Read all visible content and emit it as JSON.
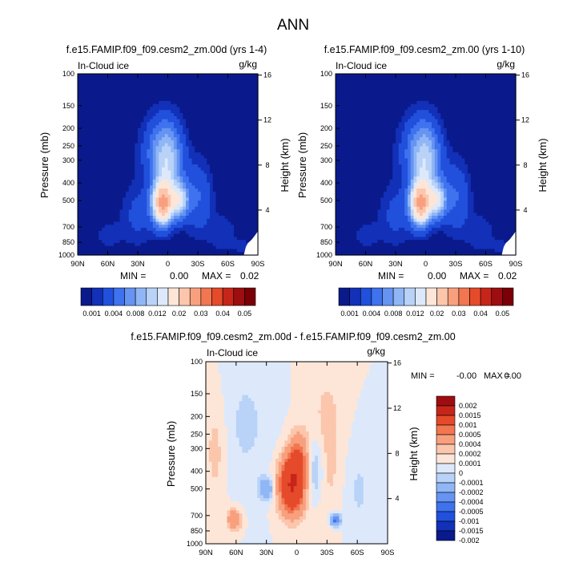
{
  "page_title": "ANN",
  "palettes": {
    "abs": [
      "#0a1a8c",
      "#1230b8",
      "#2050dc",
      "#3e72ee",
      "#6694f2",
      "#90b6f6",
      "#b8d2f8",
      "#dde9fb",
      "#fde6d8",
      "#fbc6ac",
      "#f8a07e",
      "#f2764f",
      "#e54b2a",
      "#c8251a",
      "#9e0e10",
      "#7a0006"
    ],
    "diff": [
      "#0a1a8c",
      "#1230b8",
      "#2050dc",
      "#3e72ee",
      "#6694f2",
      "#90b6f6",
      "#b8d2f8",
      "#dde9fb",
      "#fde6d8",
      "#fbc6ac",
      "#f8a07e",
      "#f2764f",
      "#e54b2a",
      "#c8251a",
      "#9e0e10"
    ]
  },
  "chart_data": [
    {
      "id": "panel_a",
      "type": "heatmap",
      "title": "f.e15.FAMIP.f09_f09.cesm2_zm.00d (yrs 1-4)",
      "left_label": "In-Cloud ice",
      "right_label": "g/kg",
      "ylabel": "Pressure (mb)",
      "y2label": "Height (km)",
      "xticks": [
        "90N",
        "60N",
        "30N",
        "0",
        "30S",
        "60S",
        "90S"
      ],
      "yticks": [
        "100",
        "150",
        "200",
        "250",
        "300",
        "400",
        "500",
        "700",
        "850",
        "1000"
      ],
      "y2ticks": [
        "16",
        "12",
        "8",
        "4"
      ],
      "xlim": [
        90,
        -90
      ],
      "ylim": [
        1000,
        100
      ],
      "stats": {
        "min_label": "MIN =",
        "min": "0.00",
        "max_label": "MAX =",
        "max": "0.02"
      },
      "field": [
        {
          "lat": 5,
          "p": 520,
          "sx": 7,
          "sy": 0.18,
          "amp": 0.024
        },
        {
          "lat": -12,
          "p": 500,
          "sx": 6,
          "sy": 0.15,
          "amp": 0.011
        },
        {
          "lat": 0,
          "p": 320,
          "sx": 10,
          "sy": 0.35,
          "amp": 0.009
        },
        {
          "lat": 8,
          "p": 260,
          "sx": 14,
          "sy": 0.3,
          "amp": 0.004
        },
        {
          "lat": -30,
          "p": 480,
          "sx": 10,
          "sy": 0.32,
          "amp": 0.004
        },
        {
          "lat": 30,
          "p": 600,
          "sx": 12,
          "sy": 0.28,
          "amp": 0.0025
        },
        {
          "lat": 60,
          "p": 780,
          "sx": 10,
          "sy": 0.14,
          "amp": 0.0015
        },
        {
          "lat": -55,
          "p": 760,
          "sx": 10,
          "sy": 0.18,
          "amp": 0.0018
        },
        {
          "lat": -75,
          "p": 900,
          "sx": 6,
          "sy": 0.08,
          "amp": 0.0014
        }
      ],
      "levels": [
        0.001,
        0.002,
        0.004,
        0.006,
        0.008,
        0.01,
        0.012,
        0.015,
        0.02,
        0.025,
        0.03,
        0.035,
        0.04,
        0.045,
        0.05
      ]
    },
    {
      "id": "panel_b",
      "type": "heatmap",
      "title": "f.e15.FAMIP.f09_f09.cesm2_zm.00 (yrs 1-10)",
      "left_label": "In-Cloud ice",
      "right_label": "g/kg",
      "ylabel": "Pressure (mb)",
      "y2label": "Height (km)",
      "xticks": [
        "90N",
        "60N",
        "30N",
        "0",
        "30S",
        "60S",
        "90S"
      ],
      "yticks": [
        "100",
        "150",
        "200",
        "250",
        "300",
        "400",
        "500",
        "700",
        "850",
        "1000"
      ],
      "y2ticks": [
        "16",
        "12",
        "8",
        "4"
      ],
      "xlim": [
        90,
        -90
      ],
      "ylim": [
        1000,
        100
      ],
      "stats": {
        "min_label": "MIN =",
        "min": "0.00",
        "max_label": "MAX =",
        "max": "0.02"
      },
      "field": [
        {
          "lat": 5,
          "p": 520,
          "sx": 7,
          "sy": 0.18,
          "amp": 0.024
        },
        {
          "lat": -12,
          "p": 500,
          "sx": 6,
          "sy": 0.15,
          "amp": 0.011
        },
        {
          "lat": 0,
          "p": 320,
          "sx": 10,
          "sy": 0.35,
          "amp": 0.009
        },
        {
          "lat": 8,
          "p": 260,
          "sx": 14,
          "sy": 0.3,
          "amp": 0.004
        },
        {
          "lat": -30,
          "p": 480,
          "sx": 10,
          "sy": 0.32,
          "amp": 0.004
        },
        {
          "lat": 30,
          "p": 600,
          "sx": 12,
          "sy": 0.28,
          "amp": 0.0025
        },
        {
          "lat": 60,
          "p": 780,
          "sx": 10,
          "sy": 0.14,
          "amp": 0.0015
        },
        {
          "lat": -55,
          "p": 760,
          "sx": 10,
          "sy": 0.18,
          "amp": 0.0018
        },
        {
          "lat": -75,
          "p": 900,
          "sx": 6,
          "sy": 0.08,
          "amp": 0.0014
        }
      ],
      "levels": [
        0.001,
        0.002,
        0.004,
        0.006,
        0.008,
        0.01,
        0.012,
        0.015,
        0.02,
        0.025,
        0.03,
        0.035,
        0.04,
        0.045,
        0.05
      ]
    },
    {
      "id": "panel_c",
      "type": "heatmap",
      "title": "f.e15.FAMIP.f09_f09.cesm2_zm.00d - f.e15.FAMIP.f09_f09.cesm2_zm.00",
      "left_label": "In-Cloud ice",
      "right_label": "g/kg",
      "ylabel": "Pressure (mb)",
      "y2label": "Height (km)",
      "xticks": [
        "90N",
        "60N",
        "30N",
        "0",
        "30S",
        "60S",
        "90S"
      ],
      "yticks": [
        "100",
        "150",
        "200",
        "250",
        "300",
        "400",
        "500",
        "700",
        "850",
        "1000"
      ],
      "y2ticks": [
        "16",
        "12",
        "8",
        "4"
      ],
      "xlim": [
        90,
        -90
      ],
      "ylim": [
        1000,
        100
      ],
      "stats": {
        "min_label": "MIN =",
        "min": "-0.00",
        "max_label": "MAX =",
        "max": "0.00"
      },
      "field": [
        {
          "lat": 5,
          "p": 480,
          "sx": 9,
          "sy": 0.25,
          "amp": 0.001
        },
        {
          "lat": -2,
          "p": 330,
          "sx": 7,
          "sy": 0.22,
          "amp": 0.0004
        },
        {
          "lat": 62,
          "p": 740,
          "sx": 5,
          "sy": 0.1,
          "amp": 0.0004
        },
        {
          "lat": 80,
          "p": 300,
          "sx": 8,
          "sy": 0.5,
          "amp": 0.00015
        },
        {
          "lat": -30,
          "p": 300,
          "sx": 14,
          "sy": 0.8,
          "amp": 0.00015
        },
        {
          "lat": 30,
          "p": 500,
          "sx": 5,
          "sy": 0.1,
          "amp": -0.0004
        },
        {
          "lat": -38,
          "p": 740,
          "sx": 4,
          "sy": 0.06,
          "amp": -0.0006
        },
        {
          "lat": -18,
          "p": 400,
          "sx": 6,
          "sy": 0.3,
          "amp": -0.0003
        },
        {
          "lat": 50,
          "p": 220,
          "sx": 18,
          "sy": 0.6,
          "amp": -0.00012
        },
        {
          "lat": -60,
          "p": 500,
          "sx": 12,
          "sy": 0.5,
          "amp": -0.00012
        }
      ],
      "levels": [
        -0.002,
        -0.0015,
        -0.001,
        -0.0005,
        -0.0004,
        -0.0002,
        -0.0001,
        0,
        0.0001,
        0.0002,
        0.0004,
        0.0005,
        0.001,
        0.0015,
        0.002
      ]
    }
  ],
  "colorbars": {
    "abs_labels": [
      "0.001",
      "0.004",
      "0.008",
      "0.012",
      "0.02",
      "0.03",
      "0.04",
      "0.05"
    ],
    "diff_labels": [
      "0.002",
      "0.0015",
      "0.001",
      "0.0005",
      "0.0004",
      "0.0002",
      "0.0001",
      "0",
      "-0.0001",
      "-0.0002",
      "-0.0004",
      "-0.0005",
      "-0.001",
      "-0.0015",
      "-0.002"
    ]
  }
}
